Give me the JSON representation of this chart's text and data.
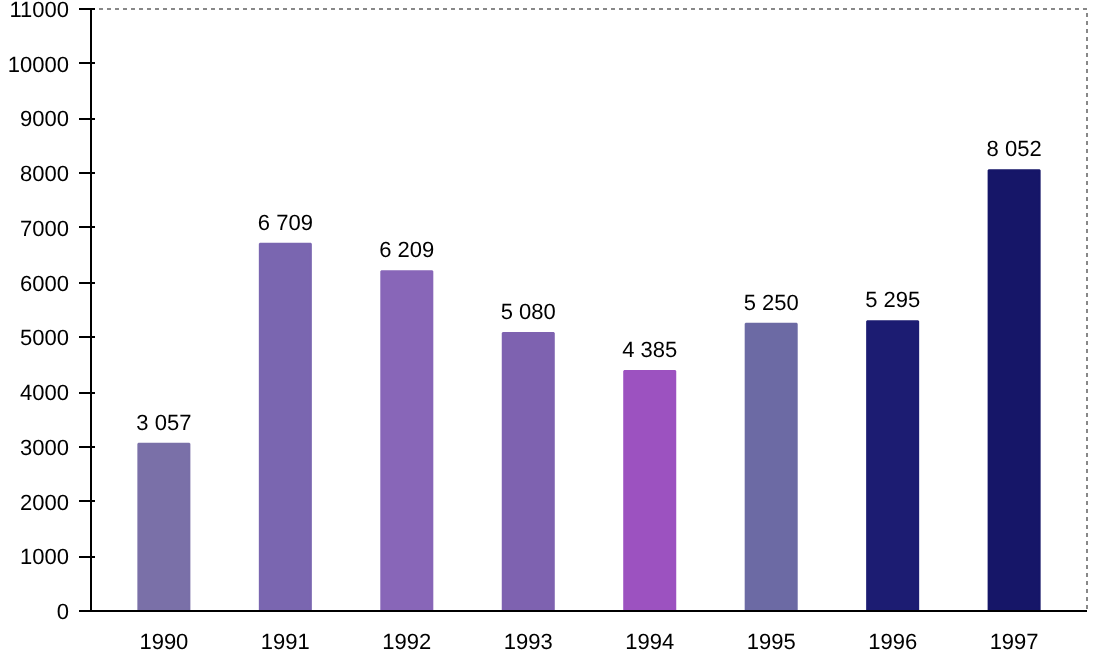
{
  "chart_data": {
    "type": "bar",
    "categories": [
      "1990",
      "1991",
      "1992",
      "1993",
      "1994",
      "1995",
      "1996",
      "1997"
    ],
    "values": [
      3057,
      6709,
      6209,
      5080,
      4385,
      5250,
      5295,
      8052
    ],
    "value_labels": [
      "3 057",
      "6 709",
      "6 209",
      "5 080",
      "4 385",
      "5 250",
      "5 295",
      "8 052"
    ],
    "colors": [
      "#7a70a8",
      "#7a66b0",
      "#8866b8",
      "#7e62b0",
      "#9c52c0",
      "#6c6aa4",
      "#1c1c72",
      "#161668"
    ],
    "ylim": [
      0,
      11000
    ],
    "yticks": [
      0,
      1000,
      2000,
      3000,
      4000,
      5000,
      6000,
      7000,
      8000,
      9000,
      10000,
      11000
    ],
    "grid": false
  }
}
